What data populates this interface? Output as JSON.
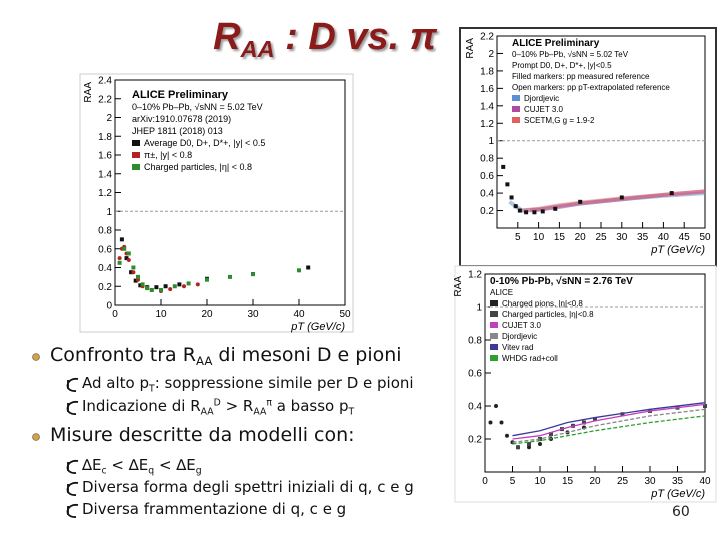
{
  "slide": {
    "title": {
      "segments": [
        {
          "text": "R"
        },
        {
          "text": "AA",
          "pos": "sub"
        },
        {
          "text": " : D vs. π"
        }
      ]
    },
    "bullets": [
      {
        "level": 1,
        "segments": [
          {
            "text": "Confronto tra R"
          },
          {
            "text": "AA",
            "pos": "sub"
          },
          {
            "text": " di mesoni D e pioni"
          }
        ]
      },
      {
        "level": 2,
        "segments": [
          {
            "text": "Ad alto p"
          },
          {
            "text": "T",
            "pos": "sub"
          },
          {
            "text": ": soppressione simile per D e pioni"
          }
        ]
      },
      {
        "level": 2,
        "segments": [
          {
            "text": "Indicazione di R"
          },
          {
            "text": "AA",
            "pos": "sub"
          },
          {
            "text": "D",
            "pos": "sup"
          },
          {
            "text": " > R"
          },
          {
            "text": "AA",
            "pos": "sub"
          },
          {
            "text": "π",
            "pos": "sup"
          },
          {
            "text": " a basso p"
          },
          {
            "text": "T",
            "pos": "sub"
          }
        ]
      },
      {
        "level": 1,
        "segments": [
          {
            "text": "Misure descritte da modelli con:"
          }
        ]
      },
      {
        "level": 2,
        "segments": [
          {
            "text": "∆E"
          },
          {
            "text": "c",
            "pos": "sub"
          },
          {
            "text": " < ∆E"
          },
          {
            "text": "q",
            "pos": "sub"
          },
          {
            "text": " < ∆E"
          },
          {
            "text": "g",
            "pos": "sub"
          }
        ]
      },
      {
        "level": 2,
        "segments": [
          {
            "text": "Diversa forma degli spettri iniziali di q, c e g"
          }
        ]
      },
      {
        "level": 2,
        "segments": [
          {
            "text": "Diversa frammentazione di q, c e g"
          }
        ]
      }
    ],
    "page_number": "60"
  },
  "chart_data": [
    {
      "type": "scatter",
      "annotations": [
        "ALICE Preliminary",
        "0–10% Pb–Pb, √sNN = 5.02 TeV",
        "arXiv:1910.07678 (2019)",
        "JHEP 1811 (2018) 013"
      ],
      "xlabel": "pT (GeV/c)",
      "ylabel": "RAA",
      "xlim": [
        0,
        50
      ],
      "xticks": [
        0,
        10,
        20,
        30,
        40,
        50
      ],
      "ylim": [
        0,
        2.4
      ],
      "yticks": [
        0,
        0.2,
        0.4,
        0.6,
        0.8,
        1,
        1.2,
        1.4,
        1.6,
        1.8,
        2,
        2.2,
        2.4
      ],
      "series": [
        {
          "name": "Average D0, D+, D*+, |y| < 0.5",
          "color": "#111111",
          "marker": "square",
          "x": [
            1.5,
            2.5,
            3.5,
            4.5,
            5.5,
            7,
            9,
            11,
            14,
            20,
            30,
            42
          ],
          "values": [
            0.7,
            0.5,
            0.35,
            0.26,
            0.21,
            0.19,
            0.19,
            0.2,
            0.22,
            0.28,
            0.33,
            0.4
          ]
        },
        {
          "name": "π±, |y| < 0.8",
          "color": "#b22222",
          "marker": "circle",
          "x": [
            1,
            1.5,
            2,
            2.5,
            3,
            4,
            5,
            6,
            8,
            10,
            12,
            15,
            18
          ],
          "values": [
            0.5,
            0.6,
            0.62,
            0.55,
            0.48,
            0.35,
            0.27,
            0.2,
            0.16,
            0.15,
            0.17,
            0.2,
            0.22
          ]
        },
        {
          "name": "Charged particles, |η| < 0.8",
          "color": "#2e8b2e",
          "marker": "square",
          "x": [
            1,
            2,
            3,
            4,
            5,
            6,
            7,
            8,
            10,
            13,
            16,
            20,
            25,
            30,
            40
          ],
          "values": [
            0.45,
            0.6,
            0.55,
            0.4,
            0.3,
            0.22,
            0.18,
            0.16,
            0.16,
            0.2,
            0.23,
            0.27,
            0.3,
            0.33,
            0.37
          ]
        }
      ]
    },
    {
      "type": "scatter",
      "annotations": [
        "ALICE Preliminary",
        "0–10% Pb–Pb, √sNN = 5.02 TeV",
        "Prompt D0, D+, D*+, |y|<0.5",
        "Filled markers: pp measured reference",
        "Open markers: pp pT-extrapolated reference"
      ],
      "xlabel": "pT (GeV/c)",
      "ylabel": "RAA",
      "xlim": [
        0,
        50
      ],
      "xticks": [
        5,
        10,
        15,
        20,
        25,
        30,
        35,
        40,
        45,
        50
      ],
      "ylim": [
        0,
        2.2
      ],
      "yticks": [
        0.2,
        0.4,
        0.6,
        0.8,
        1,
        1.2,
        1.4,
        1.6,
        1.8,
        2,
        2.2
      ],
      "series": [
        {
          "name": "Djordjevic",
          "color": "#5b8fd6",
          "marker": "band",
          "x": [
            3,
            6,
            10,
            15,
            20,
            30,
            40,
            50
          ],
          "values": [
            0.3,
            0.2,
            0.21,
            0.25,
            0.28,
            0.33,
            0.37,
            0.4
          ]
        },
        {
          "name": "CUJET 3.0",
          "color": "#b04aa0",
          "marker": "band",
          "x": [
            8,
            15,
            20,
            30,
            40,
            50
          ],
          "values": [
            0.2,
            0.24,
            0.28,
            0.33,
            0.38,
            0.42
          ]
        },
        {
          "name": "SCETM,G g = 1.9-2",
          "color": "#e06060",
          "marker": "band",
          "x": [
            6,
            10,
            15,
            20,
            30,
            40,
            50
          ],
          "values": [
            0.2,
            0.22,
            0.26,
            0.29,
            0.34,
            0.38,
            0.42
          ]
        },
        {
          "name": "D mesons",
          "color": "#111111",
          "marker": "square",
          "legend": false,
          "x": [
            1.5,
            2.5,
            3.5,
            4.5,
            5.5,
            7,
            9,
            11,
            14,
            20,
            30,
            42
          ],
          "values": [
            0.7,
            0.5,
            0.35,
            0.25,
            0.2,
            0.18,
            0.18,
            0.19,
            0.22,
            0.3,
            0.35,
            0.4
          ]
        }
      ]
    },
    {
      "type": "scatter",
      "annotations": [
        "0-10% Pb-Pb, √sNN = 2.76 TeV",
        "ALICE"
      ],
      "xlabel": "pT (GeV/c)",
      "ylabel": "RAA",
      "xlim": [
        0,
        40
      ],
      "xticks": [
        0,
        5,
        10,
        15,
        20,
        25,
        30,
        35,
        40
      ],
      "ylim": [
        0,
        1.2
      ],
      "yticks": [
        0.2,
        0.4,
        0.6,
        0.8,
        1,
        1.2
      ],
      "series": [
        {
          "name": "Charged pions, |η|<0.8",
          "color": "#222222",
          "marker": "circle",
          "x": [
            1,
            2,
            3,
            4,
            5,
            6,
            8,
            10,
            12,
            15,
            18
          ],
          "values": [
            0.3,
            0.4,
            0.3,
            0.22,
            0.18,
            0.15,
            0.15,
            0.17,
            0.2,
            0.24,
            0.27
          ]
        },
        {
          "name": "Charged particles, |η|<0.8",
          "color": "#444444",
          "marker": "square",
          "x": [
            6,
            8,
            10,
            12,
            14,
            16,
            18,
            20,
            25,
            30,
            35,
            40
          ],
          "values": [
            0.15,
            0.17,
            0.2,
            0.23,
            0.26,
            0.28,
            0.3,
            0.32,
            0.35,
            0.37,
            0.39,
            0.4
          ]
        },
        {
          "name": "CUJET 3.0",
          "color": "#c040c0",
          "marker": "line",
          "x": [
            5,
            10,
            15,
            20,
            30,
            40
          ],
          "values": [
            0.2,
            0.22,
            0.27,
            0.31,
            0.37,
            0.41
          ]
        },
        {
          "name": "Djordjevic",
          "color": "#888888",
          "marker": "line",
          "x": [
            5,
            10,
            15,
            20,
            30,
            40
          ],
          "values": [
            0.18,
            0.2,
            0.24,
            0.28,
            0.34,
            0.38
          ]
        },
        {
          "name": "Vitev rad",
          "color": "#3a3a9a",
          "marker": "line",
          "x": [
            5,
            10,
            15,
            20,
            30,
            40
          ],
          "values": [
            0.22,
            0.25,
            0.3,
            0.33,
            0.38,
            0.42
          ]
        },
        {
          "name": "WHDG rad+coll",
          "color": "#2ea02e",
          "marker": "line",
          "x": [
            5,
            10,
            15,
            20,
            30,
            40
          ],
          "values": [
            0.17,
            0.19,
            0.22,
            0.25,
            0.3,
            0.34
          ]
        }
      ]
    }
  ]
}
